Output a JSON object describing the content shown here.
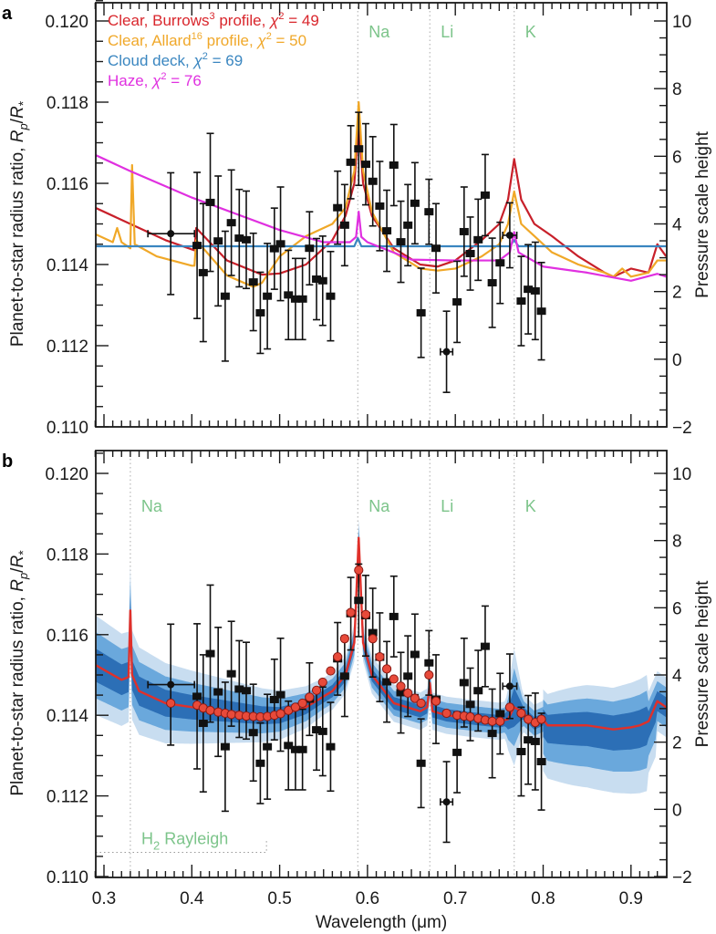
{
  "chart_data": [
    {
      "panel": "a",
      "type": "line",
      "xlabel": "",
      "ylabel": "Planet-to-star radius ratio, Rp/R*",
      "ylabel_right": "Pressure scale height",
      "xlim": [
        0.29,
        0.94
      ],
      "ylim": [
        0.11,
        0.1205
      ],
      "y_ticks": [
        "0.110",
        "0.112",
        "0.114",
        "0.116",
        "0.118",
        "0.120"
      ],
      "y_tick_values": [
        0.11,
        0.112,
        0.114,
        0.116,
        0.118,
        0.12
      ],
      "y_right_ticks": [
        "-2",
        "0",
        "2",
        "4",
        "6",
        "8",
        "10"
      ],
      "y_right_tick_values": [
        -2,
        0,
        2,
        4,
        6,
        8,
        10
      ],
      "element_lines": [
        {
          "label": "Na",
          "x": 0.589
        },
        {
          "label": "Li",
          "x": 0.671
        },
        {
          "label": "K",
          "x": 0.767
        }
      ],
      "legend": [
        {
          "name": "Clear, Burrows",
          "sup": "3",
          "rest": " profile, ",
          "chi": "χ",
          "chi_sup": "2",
          "val": " = 49",
          "color": "#d9262c"
        },
        {
          "name": "Clear, Allard",
          "sup": "16",
          "rest": " profile, ",
          "chi": "χ",
          "chi_sup": "2",
          "val": " = 50",
          "color": "#f0a82a"
        },
        {
          "name": "Cloud deck, ",
          "sup": "",
          "rest": "",
          "chi": "χ",
          "chi_sup": "2",
          "val": " = 69",
          "color": "#3a86c0"
        },
        {
          "name": "Haze, ",
          "sup": "",
          "rest": "",
          "chi": "χ",
          "chi_sup": "2",
          "val": " = 76",
          "color": "#e030e0"
        }
      ],
      "series": [
        {
          "name": "Clear, Burrows profile",
          "color": "#c8202a",
          "x": [
            0.29,
            0.33,
            0.37,
            0.403,
            0.405,
            0.44,
            0.48,
            0.5,
            0.53,
            0.56,
            0.575,
            0.585,
            0.59,
            0.595,
            0.605,
            0.63,
            0.66,
            0.68,
            0.7,
            0.73,
            0.75,
            0.76,
            0.767,
            0.775,
            0.79,
            0.81,
            0.84,
            0.87,
            0.88,
            0.9,
            0.92,
            0.93,
            0.94
          ],
          "y": [
            0.1154,
            0.115,
            0.1146,
            0.11435,
            0.1149,
            0.1141,
            0.11375,
            0.11378,
            0.114,
            0.1146,
            0.1152,
            0.116,
            0.1175,
            0.116,
            0.1152,
            0.1144,
            0.114,
            0.11395,
            0.1141,
            0.1146,
            0.115,
            0.1156,
            0.1166,
            0.1156,
            0.115,
            0.1147,
            0.1142,
            0.1138,
            0.1137,
            0.1139,
            0.1138,
            0.1145,
            0.1142
          ]
        },
        {
          "name": "Clear, Allard profile",
          "color": "#f0a828",
          "x": [
            0.29,
            0.31,
            0.315,
            0.32,
            0.33,
            0.332,
            0.335,
            0.36,
            0.4,
            0.403,
            0.405,
            0.44,
            0.47,
            0.48,
            0.5,
            0.53,
            0.56,
            0.575,
            0.585,
            0.59,
            0.595,
            0.605,
            0.63,
            0.66,
            0.68,
            0.7,
            0.73,
            0.75,
            0.76,
            0.767,
            0.775,
            0.79,
            0.81,
            0.84,
            0.87,
            0.88,
            0.89,
            0.9,
            0.92,
            0.93,
            0.94
          ],
          "y": [
            0.11475,
            0.11455,
            0.1149,
            0.11455,
            0.1144,
            0.11645,
            0.1145,
            0.1142,
            0.11397,
            0.11397,
            0.1146,
            0.11373,
            0.11345,
            0.11355,
            0.1142,
            0.1147,
            0.115,
            0.1154,
            0.1163,
            0.118,
            0.1163,
            0.1153,
            0.1143,
            0.1139,
            0.11385,
            0.1139,
            0.1142,
            0.1145,
            0.115,
            0.1158,
            0.115,
            0.1147,
            0.1143,
            0.114,
            0.1138,
            0.1137,
            0.1139,
            0.1137,
            0.1138,
            0.1141,
            0.1141
          ]
        },
        {
          "name": "Cloud deck",
          "color": "#3a86c0",
          "x": [
            0.29,
            0.585,
            0.589,
            0.593,
            0.762,
            0.767,
            0.772,
            0.94
          ],
          "y": [
            0.11445,
            0.11445,
            0.11465,
            0.11445,
            0.11445,
            0.1146,
            0.11445,
            0.11445
          ]
        },
        {
          "name": "Haze",
          "color": "#e030e0",
          "x": [
            0.29,
            0.33,
            0.4,
            0.45,
            0.5,
            0.55,
            0.58,
            0.587,
            0.59,
            0.593,
            0.6,
            0.65,
            0.7,
            0.75,
            0.762,
            0.767,
            0.772,
            0.8,
            0.85,
            0.9,
            0.93,
            0.94
          ],
          "y": [
            0.1167,
            0.1163,
            0.11565,
            0.11525,
            0.11485,
            0.11455,
            0.11455,
            0.11468,
            0.1153,
            0.11468,
            0.11455,
            0.11412,
            0.1141,
            0.1141,
            0.1143,
            0.1148,
            0.1143,
            0.11395,
            0.1138,
            0.1136,
            0.11377,
            0.1137
          ]
        }
      ]
    },
    {
      "panel": "b",
      "type": "line",
      "xlabel": "Wavelength (μm)",
      "ylabel": "Planet-to-star radius ratio, Rp/R*",
      "ylabel_right": "Pressure scale height",
      "xlim": [
        0.29,
        0.94
      ],
      "ylim": [
        0.11,
        0.1205
      ],
      "x_ticks": [
        "0.3",
        "0.4",
        "0.5",
        "0.6",
        "0.7",
        "0.8",
        "0.9"
      ],
      "x_tick_values": [
        0.3,
        0.4,
        0.5,
        0.6,
        0.7,
        0.8,
        0.9
      ],
      "y_ticks": [
        "0.110",
        "0.112",
        "0.114",
        "0.116",
        "0.118",
        "0.120"
      ],
      "y_tick_values": [
        0.11,
        0.112,
        0.114,
        0.116,
        0.118,
        0.12
      ],
      "y_right_ticks": [
        "-2",
        "0",
        "2",
        "4",
        "6",
        "8",
        "10"
      ],
      "y_right_tick_values": [
        -2,
        0,
        2,
        4,
        6,
        8,
        10
      ],
      "element_lines": [
        {
          "label": "Na",
          "x": 0.33
        },
        {
          "label": "Na",
          "x": 0.589
        },
        {
          "label": "Li",
          "x": 0.671
        },
        {
          "label": "K",
          "x": 0.767
        }
      ],
      "annotation": {
        "label": "H",
        "sub": "2",
        "rest": " Rayleigh",
        "x_range": [
          0.29,
          0.485
        ],
        "y": 0.1106
      },
      "retrieval_median": {
        "color": "#e0302a",
        "x": [
          0.29,
          0.32,
          0.328,
          0.33,
          0.332,
          0.34,
          0.37,
          0.4,
          0.44,
          0.48,
          0.5,
          0.53,
          0.56,
          0.575,
          0.585,
          0.59,
          0.595,
          0.605,
          0.63,
          0.66,
          0.668,
          0.671,
          0.674,
          0.69,
          0.72,
          0.75,
          0.76,
          0.767,
          0.775,
          0.79,
          0.8,
          0.805,
          0.85,
          0.88,
          0.9,
          0.91,
          0.92,
          0.93,
          0.94
        ],
        "y": [
          0.11525,
          0.11488,
          0.11495,
          0.1166,
          0.115,
          0.1146,
          0.1143,
          0.1142,
          0.1141,
          0.114,
          0.114,
          0.1142,
          0.1146,
          0.115,
          0.1158,
          0.1184,
          0.1158,
          0.115,
          0.1143,
          0.1141,
          0.1142,
          0.1148,
          0.1141,
          0.114,
          0.11392,
          0.11385,
          0.1139,
          0.1142,
          0.1141,
          0.1138,
          0.1139,
          0.11375,
          0.11375,
          0.11365,
          0.1137,
          0.11375,
          0.11385,
          0.11435,
          0.1142
        ]
      },
      "bands": [
        {
          "name": "3-sigma",
          "color": "#c8ddf0",
          "half_width_scale": 3
        },
        {
          "name": "2-sigma",
          "color": "#6aa8dc",
          "half_width_scale": 2
        },
        {
          "name": "1-sigma",
          "color": "#2c6fb6",
          "half_width_scale": 1
        }
      ],
      "binned_model_points": {
        "color": "#e84a3a",
        "x": [
          0.376,
          0.406,
          0.413,
          0.421,
          0.43,
          0.438,
          0.445,
          0.454,
          0.462,
          0.47,
          0.478,
          0.486,
          0.494,
          0.501,
          0.51,
          0.518,
          0.526,
          0.534,
          0.542,
          0.549,
          0.558,
          0.566,
          0.574,
          0.581,
          0.59,
          0.598,
          0.606,
          0.614,
          0.622,
          0.63,
          0.638,
          0.646,
          0.654,
          0.661,
          0.67,
          0.678,
          0.69,
          0.702,
          0.71,
          0.717,
          0.726,
          0.734,
          0.742,
          0.751,
          0.762,
          0.775,
          0.783,
          0.791,
          0.798
        ],
        "y": [
          0.1143,
          0.11425,
          0.11418,
          0.11412,
          0.11408,
          0.11405,
          0.11402,
          0.114,
          0.11398,
          0.11397,
          0.11396,
          0.11397,
          0.114,
          0.11404,
          0.11412,
          0.1142,
          0.1143,
          0.11445,
          0.11462,
          0.11482,
          0.1151,
          0.11545,
          0.1159,
          0.11655,
          0.1176,
          0.1165,
          0.1159,
          0.11545,
          0.11515,
          0.1149,
          0.11472,
          0.11455,
          0.11442,
          0.1143,
          0.115,
          0.11435,
          0.11405,
          0.114,
          0.11398,
          0.11396,
          0.11392,
          0.11388,
          0.11385,
          0.11385,
          0.1142,
          0.11405,
          0.1139,
          0.11382,
          0.1139
        ]
      }
    }
  ],
  "observations": {
    "x": [
      0.376,
      0.406,
      0.413,
      0.421,
      0.43,
      0.438,
      0.445,
      0.454,
      0.462,
      0.47,
      0.478,
      0.486,
      0.494,
      0.501,
      0.51,
      0.518,
      0.526,
      0.534,
      0.542,
      0.549,
      0.558,
      0.566,
      0.574,
      0.581,
      0.59,
      0.598,
      0.606,
      0.614,
      0.622,
      0.63,
      0.638,
      0.646,
      0.654,
      0.661,
      0.67,
      0.678,
      0.69,
      0.702,
      0.71,
      0.717,
      0.726,
      0.734,
      0.742,
      0.751,
      0.762,
      0.775,
      0.783,
      0.791,
      0.798
    ],
    "y": [
      0.11476,
      0.11447,
      0.1138,
      0.11553,
      0.11458,
      0.11322,
      0.11503,
      0.11465,
      0.11461,
      0.11357,
      0.11281,
      0.11322,
      0.11439,
      0.11451,
      0.11325,
      0.11315,
      0.11315,
      0.1144,
      0.11364,
      0.1136,
      0.11322,
      0.1154,
      0.11497,
      0.11652,
      0.11685,
      0.11647,
      0.11605,
      0.11544,
      0.11483,
      0.11645,
      0.11456,
      0.11497,
      0.11551,
      0.11281,
      0.1153,
      0.1144,
      0.11185,
      0.11308,
      0.11481,
      0.11427,
      0.11461,
      0.11571,
      0.11355,
      0.11404,
      0.11472,
      0.1131,
      0.11339,
      0.11335,
      0.11285
    ],
    "yerr": [
      0.0015,
      0.0018,
      0.0017,
      0.0017,
      0.0016,
      0.0016,
      0.0013,
      0.0012,
      0.0012,
      0.0012,
      0.001,
      0.0013,
      0.001,
      0.0014,
      0.0011,
      0.001,
      0.001,
      0.0009,
      0.001,
      0.0011,
      0.0011,
      0.0009,
      0.001,
      0.0009,
      0.0009,
      0.001,
      0.0011,
      0.0011,
      0.001,
      0.001,
      0.001,
      0.001,
      0.001,
      0.0011,
      0.0008,
      0.0011,
      0.001,
      0.001,
      0.0011,
      0.0009,
      0.001,
      0.001,
      0.0011,
      0.001,
      0.0008,
      0.0011,
      0.0011,
      0.0012,
      0.0012
    ],
    "xerr_points": [
      {
        "x": 0.376,
        "xlo": 0.35,
        "xhi": 0.403
      },
      {
        "x": 0.69,
        "xlo": 0.683,
        "xhi": 0.697
      },
      {
        "x": 0.762,
        "xlo": 0.754,
        "xhi": 0.77
      }
    ],
    "circle_marker_indices": [
      0,
      36,
      44
    ]
  },
  "labels": {
    "panel_a": "a",
    "panel_b": "b",
    "ylabel_main": "Planet-to-star radius ratio, ",
    "ylabel_r": "R",
    "ylabel_p": "p",
    "ylabel_slash": "/",
    "ylabel_R": "R",
    "ylabel_star": "*",
    "ylabel_right": "Pressure scale height",
    "xlabel": "Wavelength (μm)"
  },
  "colors": {
    "element_label": "#7cc48a",
    "axis": "#1a1a1a",
    "element_line": "#b8b8b8"
  }
}
